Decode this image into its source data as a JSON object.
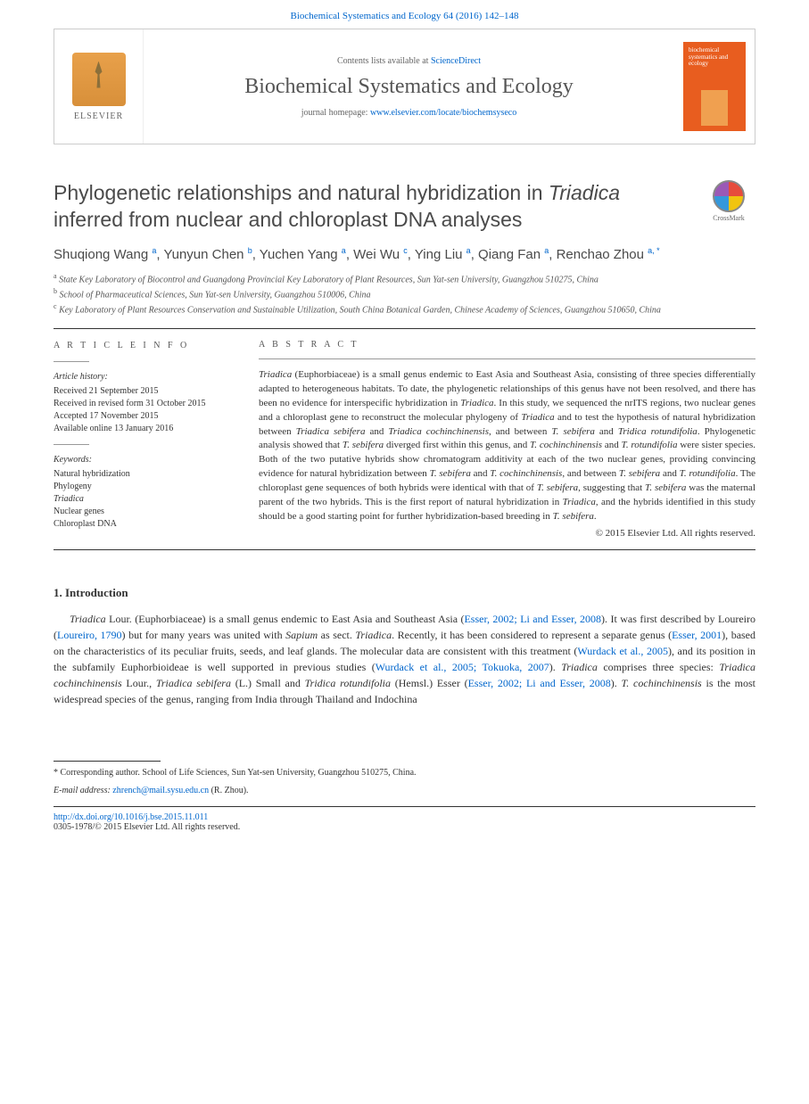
{
  "header": {
    "citation": "Biochemical Systematics and Ecology 64 (2016) 142–148",
    "logo_text": "ELSEVIER",
    "contents_prefix": "Contents lists available at ",
    "contents_link": "ScienceDirect",
    "journal_name": "Biochemical Systematics and Ecology",
    "homepage_prefix": "journal homepage: ",
    "homepage_url": "www.elsevier.com/locate/biochemsyseco",
    "cover_title": "biochemical systematics and ecology"
  },
  "crossmark": "CrossMark",
  "title_part1": "Phylogenetic relationships and natural hybridization in ",
  "title_italic": "Triadica",
  "title_part2": " inferred from nuclear and chloroplast DNA analyses",
  "authors_html": "Shuqiong Wang <sup>a</sup>, Yunyun Chen <sup>b</sup>, Yuchen Yang <sup>a</sup>, Wei Wu <sup>c</sup>, Ying Liu <sup>a</sup>, Qiang Fan <sup>a</sup>, Renchao Zhou <sup>a, *</sup>",
  "affiliations": [
    "<sup>a</sup> State Key Laboratory of Biocontrol and Guangdong Provincial Key Laboratory of Plant Resources, Sun Yat-sen University, Guangzhou 510275, China",
    "<sup>b</sup> School of Pharmaceutical Sciences, Sun Yat-sen University, Guangzhou 510006, China",
    "<sup>c</sup> Key Laboratory of Plant Resources Conservation and Sustainable Utilization, South China Botanical Garden, Chinese Academy of Sciences, Guangzhou 510650, China"
  ],
  "info": {
    "heading": "A R T I C L E  I N F O",
    "history_label": "Article history:",
    "history": [
      "Received 21 September 2015",
      "Received in revised form 31 October 2015",
      "Accepted 17 November 2015",
      "Available online 13 January 2016"
    ],
    "keywords_label": "Keywords:",
    "keywords": [
      "Natural hybridization",
      "Phylogeny",
      "Triadica",
      "Nuclear genes",
      "Chloroplast DNA"
    ]
  },
  "abstract": {
    "heading": "A B S T R A C T",
    "text_html": "<em>Triadica</em> (Euphorbiaceae) is a small genus endemic to East Asia and Southeast Asia, consisting of three species differentially adapted to heterogeneous habitats. To date, the phylogenetic relationships of this genus have not been resolved, and there has been no evidence for interspecific hybridization in <em>Triadica</em>. In this study, we sequenced the nrITS regions, two nuclear genes and a chloroplast gene to reconstruct the molecular phylogeny of <em>Triadica</em> and to test the hypothesis of natural hybridization between <em>Triadica sebifera</em> and <em>Triadica cochinchinensis</em>, and between <em>T. sebifera</em> and <em>Tridica rotundifolia</em>. Phylogenetic analysis showed that <em>T. sebifera</em> diverged first within this genus, and <em>T. cochinchinensis</em> and <em>T. rotundifolia</em> were sister species. Both of the two putative hybrids show chromatogram additivity at each of the two nuclear genes, providing convincing evidence for natural hybridization between <em>T. sebifera</em> and <em>T. cochinchinensis</em>, and between <em>T. sebifera</em> and <em>T. rotundifolia</em>. The chloroplast gene sequences of both hybrids were identical with that of <em>T. sebifera</em>, suggesting that <em>T. sebifera</em> was the maternal parent of the two hybrids. This is the first report of natural hybridization in <em>Triadica</em>, and the hybrids identified in this study should be a good starting point for further hybridization-based breeding in <em>T. sebifera</em>.",
    "copyright": "© 2015 Elsevier Ltd. All rights reserved."
  },
  "section1": {
    "heading": "1. Introduction",
    "paragraph_html": "<em>Triadica</em> Lour. (Euphorbiaceae) is a small genus endemic to East Asia and Southeast Asia (<a>Esser, 2002; Li and Esser, 2008</a>). It was first described by Loureiro (<a>Loureiro, 1790</a>) but for many years was united with <em>Sapium</em> as sect. <em>Triadica</em>. Recently, it has been considered to represent a separate genus (<a>Esser, 2001</a>), based on the characteristics of its peculiar fruits, seeds, and leaf glands. The molecular data are consistent with this treatment (<a>Wurdack et al., 2005</a>), and its position in the subfamily Euphorbioideae is well supported in previous studies (<a>Wurdack et al., 2005; Tokuoka, 2007</a>). <em>Triadica</em> comprises three species: <em>Triadica cochinchinensis</em> Lour., <em>Triadica sebifera</em> (L.) Small and <em>Tridica rotundifolia</em> (Hemsl.) Esser (<a>Esser, 2002; Li and Esser, 2008</a>). <em>T. cochinchinensis</em> is the most widespread species of the genus, ranging from India through Thailand and Indochina"
  },
  "footnote": {
    "corr": "* Corresponding author. School of Life Sciences, Sun Yat-sen University, Guangzhou 510275, China.",
    "email_label": "E-mail address: ",
    "email": "zhrench@mail.sysu.edu.cn",
    "email_suffix": " (R. Zhou)."
  },
  "footer": {
    "doi": "http://dx.doi.org/10.1016/j.bse.2015.11.011",
    "issn_line": "0305-1978/© 2015 Elsevier Ltd. All rights reserved."
  }
}
